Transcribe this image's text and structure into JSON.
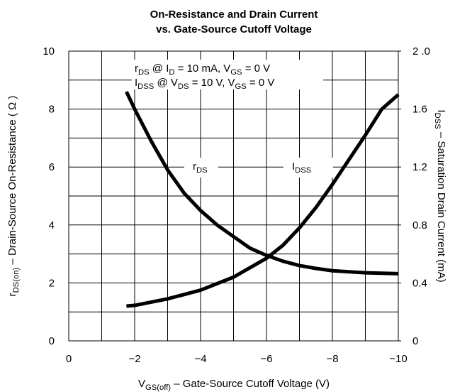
{
  "chart_data": {
    "type": "line",
    "title": [
      "On-Resistance and Drain Current",
      "vs. Gate-Source Cutoff Voltage"
    ],
    "xlabel": [
      "V",
      "GS(off)",
      " – Gate-Source Cutoff Voltage (V)"
    ],
    "ylabel": [
      "r",
      "DS(on)",
      " – Drain-Source On-Resistance ( Ω )"
    ],
    "y2label": [
      "I",
      "DSS",
      " – Saturation Drain Current (mA)"
    ],
    "annotations": [
      [
        "r",
        "DS",
        " @ I",
        "D",
        " = 10 mA, V",
        "GS",
        " = 0 V"
      ],
      [
        "I",
        "DSS",
        " @ V",
        "DS",
        " = 10 V, V",
        "GS",
        " = 0 V"
      ]
    ],
    "xlim": [
      0,
      -10
    ],
    "xticks": [
      0,
      {
        "value": -2,
        "label": "−2"
      },
      {
        "value": -4,
        "label": "−4"
      },
      {
        "value": -6,
        "label": "−6"
      },
      {
        "value": -8,
        "label": "−8"
      },
      {
        "value": -10,
        "label": "−10"
      }
    ],
    "xminor": [
      -1,
      -3,
      -5,
      -7,
      -9
    ],
    "ylim": [
      0,
      10
    ],
    "yticks": [
      0,
      2,
      4,
      6,
      8,
      10
    ],
    "yminor": [
      1,
      3,
      5,
      7,
      9
    ],
    "y2lim": [
      0,
      2
    ],
    "y2ticks": [
      0,
      0.4,
      0.8,
      1.2,
      1.6,
      {
        "value": 2,
        "label": "2 .0"
      }
    ],
    "grid": true,
    "series": [
      {
        "name": [
          "r",
          "DS"
        ],
        "color": "#000000",
        "x": [
          -1.75,
          -2,
          -2.5,
          -3,
          -3.5,
          -4,
          -4.5,
          -5,
          -5.5,
          -6,
          -6.5,
          -7,
          -7.5,
          -8,
          -9,
          -10
        ],
        "values": [
          8.6,
          8.0,
          6.9,
          5.9,
          5.1,
          4.5,
          4.0,
          3.6,
          3.2,
          2.95,
          2.75,
          2.6,
          2.5,
          2.42,
          2.35,
          2.32
        ]
      },
      {
        "name": [
          "I",
          "DSS"
        ],
        "color": "#000000",
        "axis": "y2",
        "x": [
          -1.75,
          -2,
          -3,
          -4,
          -5,
          -6,
          -6.5,
          -7,
          -7.5,
          -8,
          -8.5,
          -9,
          -9.5,
          -10
        ],
        "values": [
          0.24,
          0.245,
          0.29,
          0.35,
          0.44,
          0.57,
          0.66,
          0.78,
          0.92,
          1.08,
          1.25,
          1.42,
          1.6,
          1.7
        ]
      }
    ]
  }
}
